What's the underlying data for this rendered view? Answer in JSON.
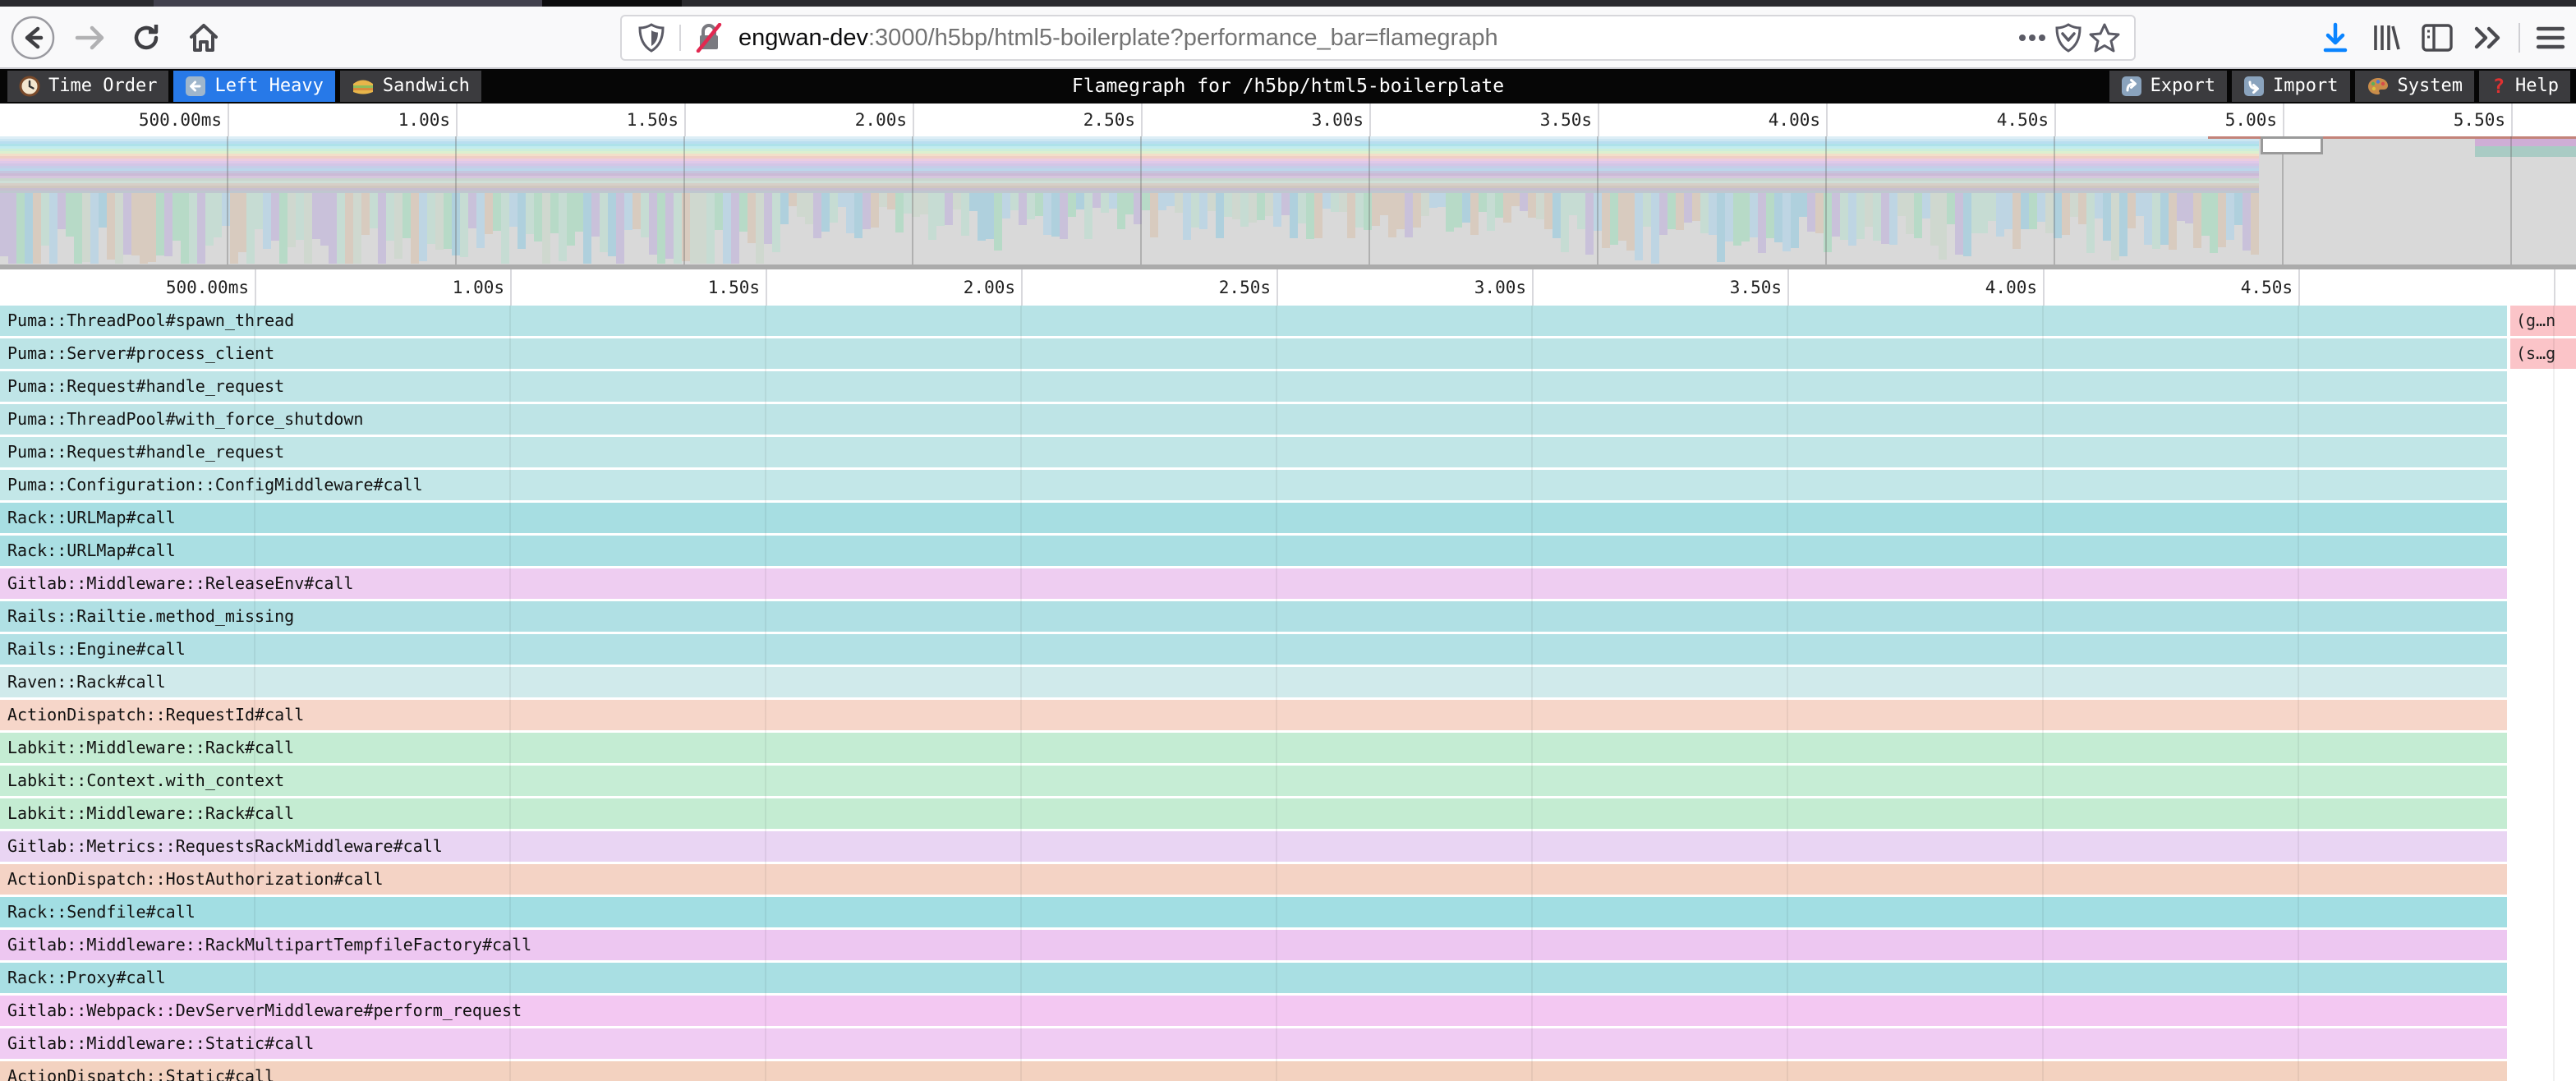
{
  "browser": {
    "url_host": "engwan-dev",
    "url_path": ":3000/h5bp/html5-boilerplate?performance_bar=flamegraph"
  },
  "toolbar": {
    "tabs": [
      {
        "label": "Time Order",
        "icon": "clock-icon",
        "active": false
      },
      {
        "label": "Left Heavy",
        "icon": "left-arrow-icon",
        "active": true
      },
      {
        "label": "Sandwich",
        "icon": "sandwich-icon",
        "active": false
      }
    ],
    "title": "Flamegraph for /h5bp/html5-boilerplate",
    "actions": [
      {
        "label": "Export",
        "icon": "export-icon"
      },
      {
        "label": "Import",
        "icon": "import-icon"
      },
      {
        "label": "System",
        "icon": "palette-icon"
      },
      {
        "label": "Help",
        "icon": "help-icon"
      }
    ],
    "active_tab_color": "#2779e8"
  },
  "minimap": {
    "axis_ticks": [
      "500.00ms",
      "1.00s",
      "1.50s",
      "2.00s",
      "2.50s",
      "3.00s",
      "3.50s",
      "4.00s",
      "4.50s",
      "5.00s",
      "5.50s"
    ]
  },
  "main": {
    "axis_ticks": [
      "500.00ms",
      "1.00s",
      "1.50s",
      "2.00s",
      "2.50s",
      "3.00s",
      "3.50s",
      "4.00s",
      "4.50s"
    ]
  },
  "chart_data": {
    "type": "flamegraph",
    "title": "Flamegraph for /h5bp/html5-boilerplate",
    "x_range_visible": [
      "0s",
      "4.9s"
    ],
    "minimap_range": [
      "0s",
      "5.64s"
    ]
  },
  "flamegraph": {
    "rows": [
      {
        "label": "Puma::ThreadPool#spawn_thread",
        "color": "#b7e3e6",
        "fragment": {
          "label": "(g…n",
          "color": "#fbc4c8"
        }
      },
      {
        "label": "Puma::Server#process_client",
        "color": "#bce4e6",
        "fragment": {
          "label": "(s…g",
          "color": "#fbc4c8"
        }
      },
      {
        "label": "Puma::Request#handle_request",
        "color": "#bfe5e7"
      },
      {
        "label": "Puma::ThreadPool#with_force_shutdown",
        "color": "#bee4e6"
      },
      {
        "label": "Puma::Request#handle_request",
        "color": "#c1e6e7"
      },
      {
        "label": "Puma::Configuration::ConfigMiddleware#call",
        "color": "#c3e7e8"
      },
      {
        "label": "Rack::URLMap#call",
        "color": "#a7dee2"
      },
      {
        "label": "Rack::URLMap#call",
        "color": "#aadfe3"
      },
      {
        "label": "Gitlab::Middleware::ReleaseEnv#call",
        "color": "#eecdf1"
      },
      {
        "label": "Rails::Railtie.method_missing",
        "color": "#b0e0e4"
      },
      {
        "label": "Rails::Engine#call",
        "color": "#b3e1e5"
      },
      {
        "label": "Raven::Rack#call",
        "color": "#d0eaeb"
      },
      {
        "label": "ActionDispatch::RequestId#call",
        "color": "#f6d6c9"
      },
      {
        "label": "Labkit::Middleware::Rack#call",
        "color": "#c4ecd3"
      },
      {
        "label": "Labkit::Context.with_context",
        "color": "#c6edd5"
      },
      {
        "label": "Labkit::Middleware::Rack#call",
        "color": "#c4ecd2"
      },
      {
        "label": "Gitlab::Metrics::RequestsRackMiddleware#call",
        "color": "#e9d5f3"
      },
      {
        "label": "ActionDispatch::HostAuthorization#call",
        "color": "#f4d3c5"
      },
      {
        "label": "Rack::Sendfile#call",
        "color": "#a2dee3"
      },
      {
        "label": "Gitlab::Middleware::RackMultipartTempfileFactory#call",
        "color": "#edc7f1"
      },
      {
        "label": "Rack::Proxy#call",
        "color": "#a9dfe3"
      },
      {
        "label": "Gitlab::Webpack::DevServerMiddleware#perform_request",
        "color": "#f3c8f2"
      },
      {
        "label": "Gitlab::Middleware::Static#call",
        "color": "#f0ccf3"
      },
      {
        "label": "ActionDispatch::Static#call",
        "color": "#f3d2c0"
      }
    ]
  }
}
